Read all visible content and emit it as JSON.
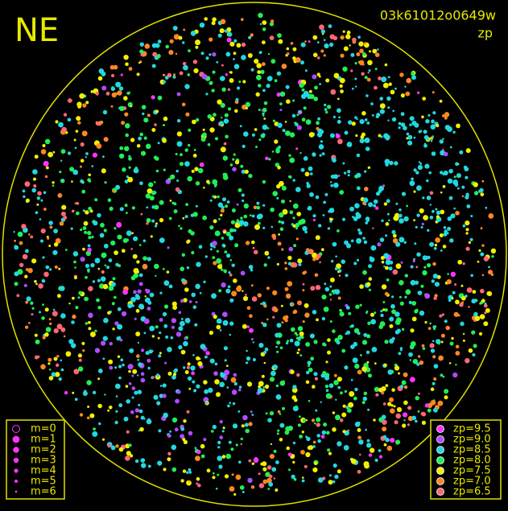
{
  "header": {
    "label": "NE",
    "frame_id": "03k61012o0649w",
    "mode": "zp"
  },
  "magnitude_legend": {
    "items": [
      "m=0",
      "m=1",
      "m=2",
      "m=3",
      "m=4",
      "m=5",
      "m=6"
    ]
  },
  "zp_legend": {
    "items": [
      {
        "label": "zp=9.5",
        "color": "#ff33ff"
      },
      {
        "label": "zp=9.0",
        "color": "#b04cff"
      },
      {
        "label": "zp=8.5",
        "color": "#22d8e0"
      },
      {
        "label": "zp=8.0",
        "color": "#22ee55"
      },
      {
        "label": "zp=7.5",
        "color": "#f0f000"
      },
      {
        "label": "zp=7.0",
        "color": "#ff8822"
      },
      {
        "label": "zp=6.5",
        "color": "#ff6677"
      }
    ]
  }
}
